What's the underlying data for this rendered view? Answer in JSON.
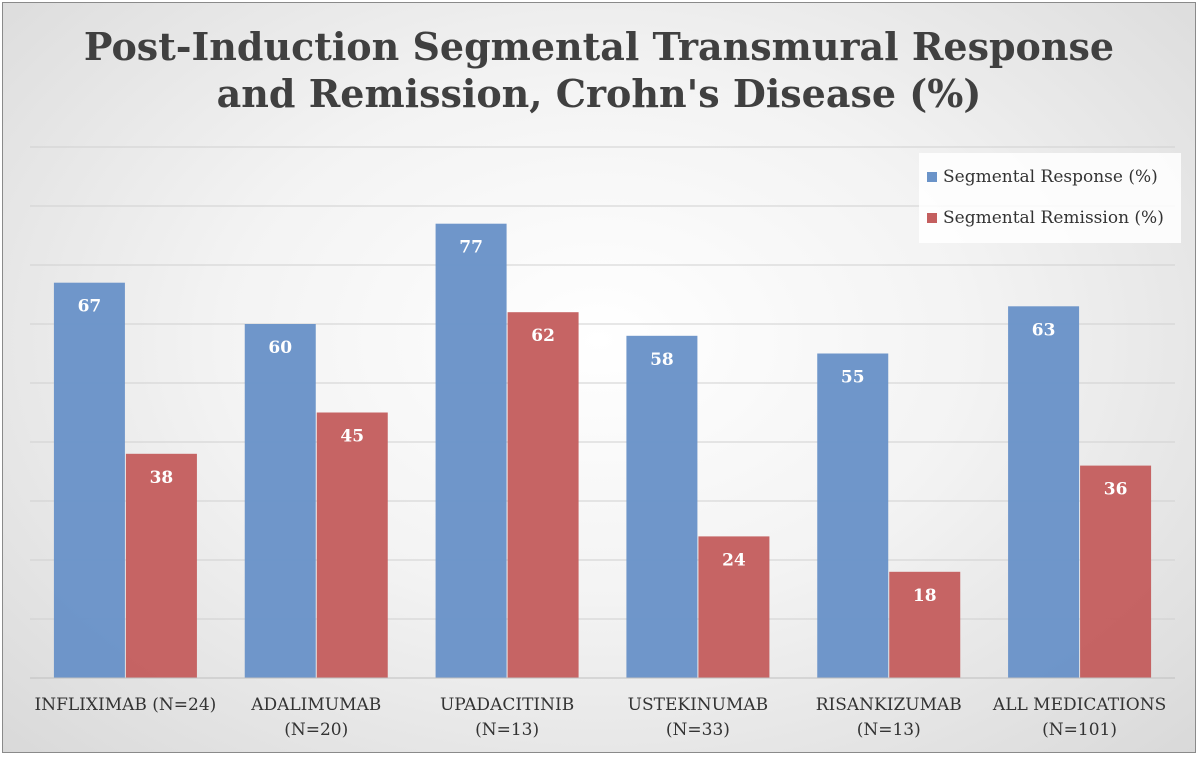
{
  "chart_data": {
    "type": "bar",
    "title": [
      "Post-Induction Segmental Transmural Response",
      "and Remission, Crohn's Disease (%)"
    ],
    "categories": [
      [
        "INFLIXIMAB (N=24)"
      ],
      [
        "ADALIMUMAB",
        "(N=20)"
      ],
      [
        "UPADACITINIB",
        "(N=13)"
      ],
      [
        "USTEKINUMAB",
        "(N=33)"
      ],
      [
        "RISANKIZUMAB",
        "(N=13)"
      ],
      [
        "ALL MEDICATIONS",
        "(N=101)"
      ]
    ],
    "series": [
      {
        "name": "Segmental Response (%)",
        "color": "#6a93c8",
        "values": [
          67,
          60,
          77,
          58,
          55,
          63
        ]
      },
      {
        "name": "Segmental Remission (%)",
        "color": "#c45f5f",
        "values": [
          38,
          45,
          62,
          24,
          18,
          36
        ]
      }
    ],
    "ylim": [
      0,
      90
    ],
    "y_gridline_step": 10,
    "grid": true,
    "y_tick_labels_shown": false,
    "data_labels": true,
    "legend_position": "top-right",
    "xlabel": "",
    "ylabel": ""
  }
}
